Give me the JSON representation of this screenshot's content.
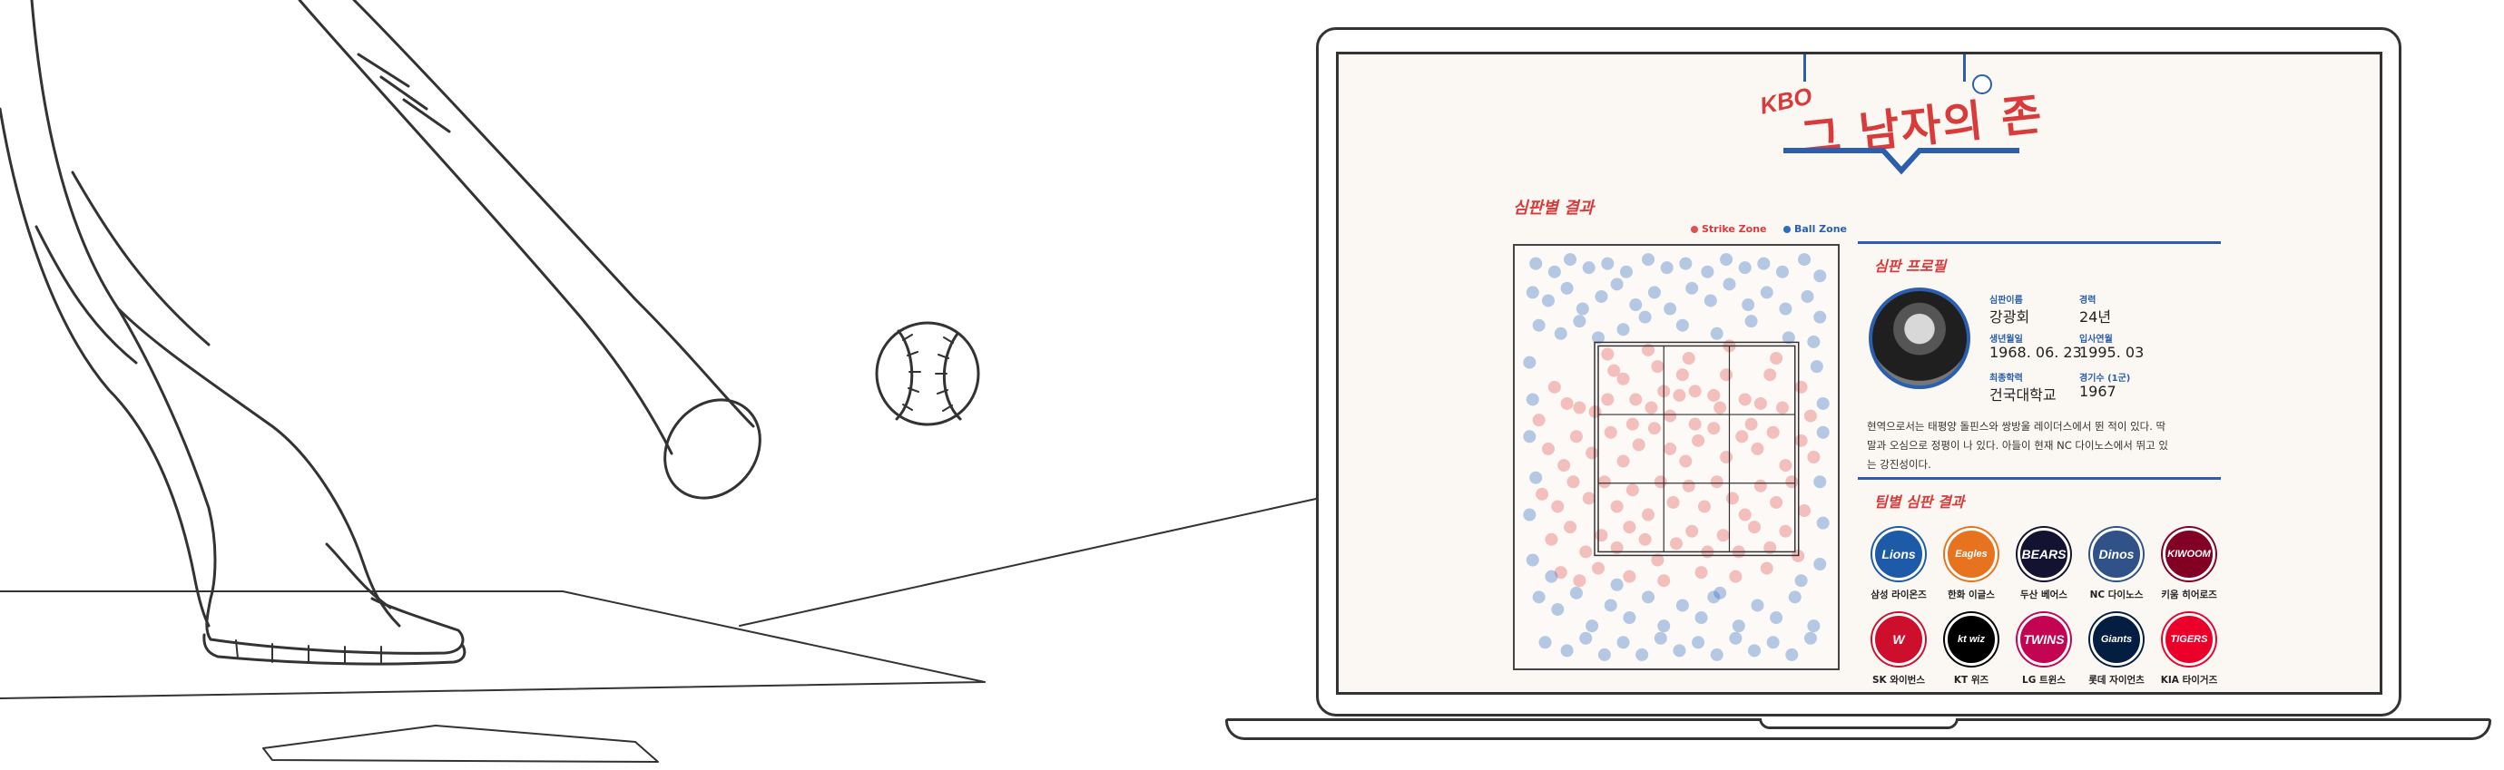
{
  "app": {
    "logo_prefix": "KBO",
    "logo_title": "그 남자의 존"
  },
  "umpire_results": {
    "title": "심판별 결과",
    "legend": [
      {
        "label": "Strike Zone",
        "color": "#e0524f"
      },
      {
        "label": "Ball Zone",
        "color": "#2b6cc4"
      }
    ]
  },
  "profile": {
    "title": "심판 프로필",
    "fields": [
      {
        "label": "심판이름",
        "value": "강광회"
      },
      {
        "label": "경력",
        "value": "24년"
      },
      {
        "label": "생년월일",
        "value": "1968. 06. 23"
      },
      {
        "label": "입사연월",
        "value": "1995. 03"
      },
      {
        "label": "최종학력",
        "value": "건국대학교"
      },
      {
        "label": "경기수 (1군)",
        "value": "1967"
      }
    ],
    "bio_lines": [
      "현역으로서는 태평양 돌핀스와 쌍방울 레이더스에서 뛴 적이 있다. 딱",
      "말과 오심으로 정평이 나 있다. 아들이 현재 NC 다이노스에서 뛰고 있",
      "는 강진성이다."
    ]
  },
  "team_results": {
    "title": "팀별 심판 결과",
    "teams": [
      {
        "name": "삼성 라이온즈",
        "logo": "Lions",
        "color": "#1d5aa8"
      },
      {
        "name": "한화 이글스",
        "logo": "Eagles",
        "color": "#e8731e"
      },
      {
        "name": "두산 베어스",
        "logo": "BEARS",
        "color": "#131230"
      },
      {
        "name": "NC 다이노스",
        "logo": "Dinos",
        "color": "#315288"
      },
      {
        "name": "키움 히어로즈",
        "logo": "KIWOOM",
        "color": "#820024"
      },
      {
        "name": "SK 와이번스",
        "logo": "W",
        "color": "#ce0e2d"
      },
      {
        "name": "KT 위즈",
        "logo": "kt wiz",
        "color": "#000000"
      },
      {
        "name": "LG 트윈스",
        "logo": "TWINS",
        "color": "#c30452"
      },
      {
        "name": "롯데 자이언츠",
        "logo": "Giants",
        "color": "#041e42"
      },
      {
        "name": "KIA 타이거즈",
        "logo": "TIGERS",
        "color": "#ea0029"
      }
    ]
  },
  "chart_data": {
    "type": "scatter",
    "title": "",
    "xlabel": "",
    "ylabel": "",
    "xlim": [
      0,
      100
    ],
    "ylim": [
      0,
      100
    ],
    "grid": false,
    "legend_placement": "top-right",
    "zone_grid": {
      "cols": 3,
      "rows": 3,
      "x_range": [
        25,
        88
      ],
      "y_range": [
        27,
        77
      ]
    },
    "series": [
      {
        "name": "Strike Zone",
        "color": "#e0524f",
        "points": [
          [
            6,
            59
          ],
          [
            11,
            67
          ],
          [
            15,
            63
          ],
          [
            19,
            62
          ],
          [
            24,
            61
          ],
          [
            28,
            64
          ],
          [
            30,
            71
          ],
          [
            33,
            69
          ],
          [
            37,
            64
          ],
          [
            42,
            62
          ],
          [
            46,
            66
          ],
          [
            51,
            65
          ],
          [
            56,
            66
          ],
          [
            62,
            65
          ],
          [
            66,
            70
          ],
          [
            72,
            64
          ],
          [
            77,
            63
          ],
          [
            80,
            70
          ],
          [
            84,
            62
          ],
          [
            90,
            67
          ],
          [
            93,
            60
          ],
          [
            9,
            52
          ],
          [
            14,
            48
          ],
          [
            18,
            55
          ],
          [
            23,
            51
          ],
          [
            29,
            56
          ],
          [
            33,
            49
          ],
          [
            38,
            53
          ],
          [
            43,
            57
          ],
          [
            48,
            52
          ],
          [
            53,
            49
          ],
          [
            57,
            54
          ],
          [
            62,
            57
          ],
          [
            66,
            50
          ],
          [
            71,
            55
          ],
          [
            76,
            52
          ],
          [
            81,
            56
          ],
          [
            85,
            48
          ],
          [
            90,
            54
          ],
          [
            94,
            50
          ],
          [
            7,
            41
          ],
          [
            12,
            38
          ],
          [
            17,
            44
          ],
          [
            22,
            40
          ],
          [
            27,
            44
          ],
          [
            31,
            38
          ],
          [
            36,
            42
          ],
          [
            41,
            36
          ],
          [
            45,
            44
          ],
          [
            49,
            39
          ],
          [
            54,
            43
          ],
          [
            59,
            38
          ],
          [
            63,
            44
          ],
          [
            68,
            40
          ],
          [
            72,
            36
          ],
          [
            77,
            43
          ],
          [
            82,
            39
          ],
          [
            87,
            44
          ],
          [
            91,
            37
          ],
          [
            10,
            30
          ],
          [
            16,
            33
          ],
          [
            21,
            27
          ],
          [
            26,
            31
          ],
          [
            31,
            28
          ],
          [
            35,
            33
          ],
          [
            40,
            30
          ],
          [
            44,
            25
          ],
          [
            50,
            29
          ],
          [
            55,
            32
          ],
          [
            60,
            27
          ],
          [
            65,
            31
          ],
          [
            70,
            27
          ],
          [
            75,
            33
          ],
          [
            80,
            28
          ],
          [
            85,
            32
          ],
          [
            89,
            26
          ],
          [
            13,
            22
          ],
          [
            19,
            20
          ],
          [
            25,
            23
          ],
          [
            35,
            21
          ],
          [
            46,
            20
          ],
          [
            58,
            22
          ],
          [
            69,
            21
          ],
          [
            79,
            23
          ],
          [
            28,
            75
          ],
          [
            41,
            76
          ],
          [
            54,
            74
          ],
          [
            67,
            77
          ],
          [
            82,
            74
          ],
          [
            48,
            60
          ],
          [
            56,
            58
          ],
          [
            36,
            58
          ],
          [
            64,
            62
          ],
          [
            52,
            70
          ],
          [
            44,
            72
          ],
          [
            74,
            58
          ]
        ]
      },
      {
        "name": "Ball Zone",
        "color": "#2b6cc4",
        "points": [
          [
            5,
            97
          ],
          [
            11,
            95
          ],
          [
            16,
            98
          ],
          [
            22,
            96
          ],
          [
            28,
            97
          ],
          [
            34,
            95
          ],
          [
            41,
            98
          ],
          [
            47,
            96
          ],
          [
            53,
            97
          ],
          [
            60,
            95
          ],
          [
            66,
            98
          ],
          [
            72,
            96
          ],
          [
            78,
            97
          ],
          [
            84,
            95
          ],
          [
            91,
            98
          ],
          [
            96,
            94
          ],
          [
            4,
            90
          ],
          [
            9,
            88
          ],
          [
            15,
            91
          ],
          [
            20,
            86
          ],
          [
            26,
            89
          ],
          [
            31,
            92
          ],
          [
            37,
            87
          ],
          [
            43,
            90
          ],
          [
            48,
            86
          ],
          [
            55,
            91
          ],
          [
            61,
            88
          ],
          [
            67,
            92
          ],
          [
            73,
            87
          ],
          [
            79,
            90
          ],
          [
            85,
            86
          ],
          [
            92,
            89
          ],
          [
            96,
            84
          ],
          [
            6,
            82
          ],
          [
            13,
            80
          ],
          [
            19,
            83
          ],
          [
            25,
            79
          ],
          [
            33,
            81
          ],
          [
            40,
            84
          ],
          [
            52,
            82
          ],
          [
            63,
            80
          ],
          [
            74,
            83
          ],
          [
            86,
            79
          ],
          [
            94,
            78
          ],
          [
            3,
            73
          ],
          [
            95,
            72
          ],
          [
            4,
            64
          ],
          [
            97,
            63
          ],
          [
            3,
            55
          ],
          [
            97,
            56
          ],
          [
            5,
            45
          ],
          [
            96,
            44
          ],
          [
            3,
            36
          ],
          [
            97,
            34
          ],
          [
            4,
            25
          ],
          [
            96,
            24
          ],
          [
            6,
            16
          ],
          [
            12,
            13
          ],
          [
            18,
            17
          ],
          [
            23,
            9
          ],
          [
            29,
            14
          ],
          [
            35,
            11
          ],
          [
            41,
            16
          ],
          [
            46,
            9
          ],
          [
            52,
            14
          ],
          [
            58,
            11
          ],
          [
            64,
            17
          ],
          [
            70,
            9
          ],
          [
            76,
            14
          ],
          [
            82,
            11
          ],
          [
            88,
            16
          ],
          [
            94,
            9
          ],
          [
            8,
            5
          ],
          [
            15,
            3
          ],
          [
            21,
            6
          ],
          [
            27,
            2
          ],
          [
            33,
            5
          ],
          [
            39,
            2
          ],
          [
            45,
            6
          ],
          [
            51,
            3
          ],
          [
            57,
            5
          ],
          [
            63,
            2
          ],
          [
            69,
            6
          ],
          [
            75,
            3
          ],
          [
            81,
            5
          ],
          [
            87,
            2
          ],
          [
            93,
            6
          ],
          [
            10,
            21
          ],
          [
            31,
            19
          ],
          [
            62,
            16
          ],
          [
            90,
            20
          ]
        ]
      }
    ]
  }
}
